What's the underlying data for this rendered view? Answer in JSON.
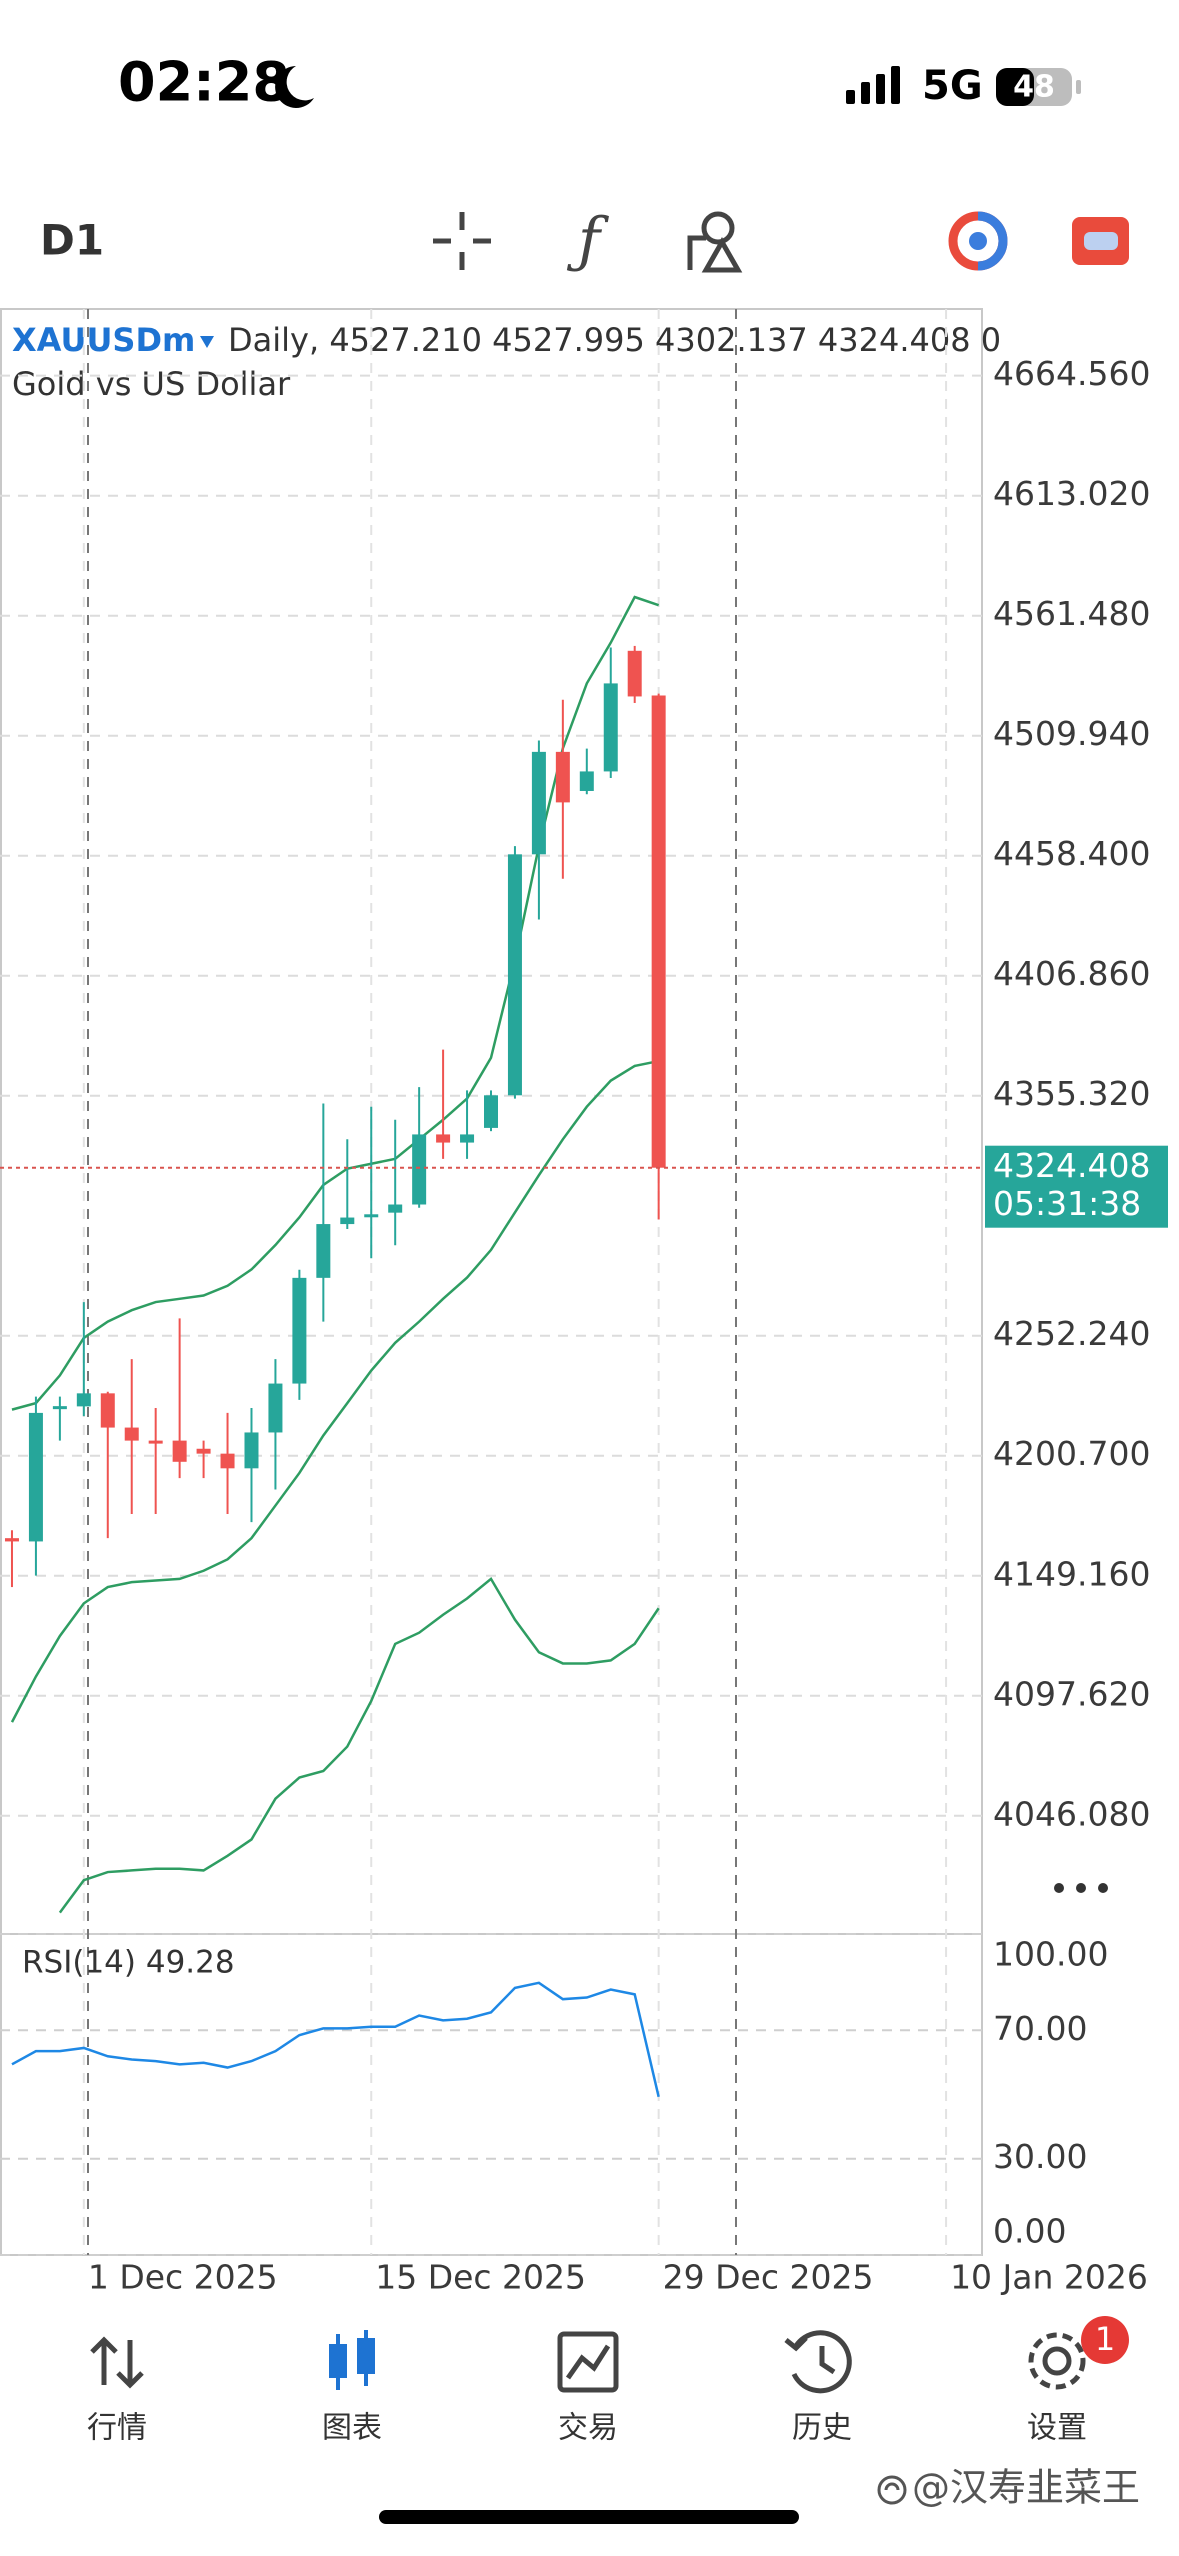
{
  "status_bar": {
    "time": "02:28",
    "network": "5G",
    "battery": "48"
  },
  "toolbar": {
    "timeframe": "D1"
  },
  "chart_data": [
    {
      "type": "candlestick",
      "title": "XAUUSDm",
      "info": "Daily, 4527.210 4527.995 4302.137 4324.408 0",
      "subtitle": "Gold vs US Dollar",
      "categories": [
        null,
        null,
        null,
        "1 Dec 2025",
        null,
        null,
        null,
        null,
        null,
        null,
        null,
        null,
        null,
        null,
        null,
        "15 Dec 2025",
        null,
        null,
        null,
        null,
        null,
        null,
        null,
        null,
        null,
        null,
        null,
        "29 Dec 2025",
        null,
        null,
        null,
        null,
        null,
        null,
        null,
        null,
        null,
        null,
        null,
        "10 Jan 2026",
        null
      ],
      "open": [
        4165.3,
        4163.9,
        4221.3,
        4221.9,
        4227.5,
        4212.8,
        4207.2,
        4207.2,
        4203.7,
        4201.6,
        4195.3,
        4210.7,
        4231.7,
        4277.1,
        4300.2,
        4303.7,
        4305.1,
        4308.6,
        4338.7,
        4335.2,
        4341.5,
        4355.5,
        4459.0,
        4503.0,
        4486.2,
        4494.6,
        4546.4,
        4527.21,
        null,
        null,
        null,
        null,
        null,
        null,
        null,
        null,
        null,
        null,
        null,
        null,
        null
      ],
      "high": [
        4168.7,
        4226.1,
        4226.1,
        4266.7,
        4228.2,
        4242.2,
        4221.2,
        4259.7,
        4207.2,
        4219.1,
        4221.2,
        4242.2,
        4280.6,
        4352.0,
        4336.6,
        4350.6,
        4345.0,
        4359.0,
        4375.1,
        4357.6,
        4357.6,
        4462.5,
        4507.9,
        4525.4,
        4504.4,
        4547.8,
        4548.5,
        4527.995,
        null,
        null,
        null,
        null,
        null,
        null,
        null,
        null,
        null,
        null,
        null,
        null,
        null
      ],
      "low": [
        4144.3,
        4149.2,
        4207.2,
        4217.7,
        4165.3,
        4175.7,
        4175.7,
        4191.1,
        4191.1,
        4175.7,
        4172.2,
        4186.2,
        4224.7,
        4258.3,
        4298.1,
        4285.5,
        4291.1,
        4307.2,
        4328.2,
        4328.2,
        4340.1,
        4354.1,
        4431.0,
        4448.5,
        4484.8,
        4491.8,
        4524.0,
        4302.137,
        null,
        null,
        null,
        null,
        null,
        null,
        null,
        null,
        null,
        null,
        null,
        null,
        null
      ],
      "close": [
        4163.9,
        4219.1,
        4222.0,
        4227.5,
        4212.8,
        4207.2,
        4206.5,
        4198.1,
        4201.6,
        4195.3,
        4210.7,
        4231.7,
        4277.1,
        4300.2,
        4303.0,
        4304.4,
        4308.6,
        4338.7,
        4335.2,
        4338.7,
        4355.5,
        4459.0,
        4503.0,
        4481.3,
        4494.6,
        4532.4,
        4526.8,
        4324.408,
        null,
        null,
        null,
        null,
        null,
        null,
        null,
        null,
        null,
        null,
        null,
        null,
        null
      ],
      "up_color": "#26a69a",
      "down_color": "#ef5350",
      "bands": {
        "color": "#2e9d62",
        "upper": [
          4220.5,
          4223.3,
          4235.2,
          4251.3,
          4258.3,
          4263.2,
          4266.7,
          4268.1,
          4269.5,
          4273.7,
          4280.7,
          4291.2,
          4303.1,
          4317.0,
          4324.0,
          4326.1,
          4328.2,
          4336.6,
          4345.0,
          4354.1,
          4371.6,
          4413.6,
          4462.5,
          4504.5,
          4532.4,
          4549.9,
          4569.5,
          4566.0,
          null,
          null,
          null,
          null,
          null,
          null,
          null,
          null,
          null,
          null,
          null,
          null,
          null
        ],
        "middle": [
          4086.3,
          4105.9,
          4123.3,
          4137.3,
          4144.3,
          4146.4,
          4147.1,
          4147.8,
          4151.3,
          4156.2,
          4165.3,
          4179.3,
          4193.3,
          4209.4,
          4223.3,
          4237.3,
          4249.2,
          4258.3,
          4268.1,
          4277.2,
          4289.1,
          4305.2,
          4321.2,
          4336.6,
          4350.6,
          4361.8,
          4368.1,
          4370.2,
          null,
          null,
          null,
          null,
          null,
          null,
          null,
          null,
          null,
          null,
          null,
          null,
          null
        ],
        "lower": [
          null,
          null,
          4004.5,
          4018.4,
          4021.9,
          4022.6,
          4023.3,
          4023.3,
          4022.6,
          4028.9,
          4035.9,
          4053.4,
          4062.5,
          4065.3,
          4075.8,
          4095.4,
          4119.9,
          4124.7,
          4132.4,
          4139.4,
          4147.8,
          4130.3,
          4116.3,
          4111.5,
          4111.5,
          4112.8,
          4119.9,
          4135.2,
          null,
          null,
          null,
          null,
          null,
          null,
          null,
          null,
          null,
          null,
          null,
          null,
          null
        ]
      },
      "last_price": 4324.408,
      "last_color": "#26a69a",
      "countdown": "05:31:38",
      "ylim": [
        3995.3,
        4693.2
      ],
      "yticks": [
        {
          "value": 4664.56,
          "label": "4664.560"
        },
        {
          "value": 4613.02,
          "label": "4613.020"
        },
        {
          "value": 4561.48,
          "label": "4561.480"
        },
        {
          "value": 4509.94,
          "label": "4509.940"
        },
        {
          "value": 4458.4,
          "label": "4458.400"
        },
        {
          "value": 4406.86,
          "label": "4406.860"
        },
        {
          "value": 4355.32,
          "label": "4355.320"
        },
        {
          "value": 4252.24,
          "label": "4252.240"
        },
        {
          "value": 4200.7,
          "label": "4200.700"
        },
        {
          "value": 4149.16,
          "label": "4149.160"
        },
        {
          "value": 4097.62,
          "label": "4097.620"
        },
        {
          "value": 4046.08,
          "label": "4046.080"
        }
      ],
      "grid": true
    },
    {
      "type": "line",
      "title": "RSI(14) 49.28",
      "color": "#1e88e5",
      "values": [
        59.4,
        63.5,
        63.5,
        64.5,
        61.9,
        60.9,
        60.4,
        59.4,
        59.9,
        58.4,
        60.4,
        63.5,
        68.5,
        70.6,
        70.6,
        71.1,
        71.1,
        74.6,
        73.1,
        73.6,
        75.6,
        83.2,
        84.8,
        79.7,
        80.2,
        82.7,
        81.2,
        49.28,
        null,
        null,
        null,
        null,
        null,
        null,
        null,
        null,
        null,
        null,
        null,
        null,
        null
      ],
      "ylim": [
        0,
        100
      ],
      "yticks": [
        {
          "value": 100,
          "label": "100.00"
        },
        {
          "value": 70,
          "label": "70.00"
        },
        {
          "value": 30,
          "label": "30.00"
        },
        {
          "value": 0,
          "label": "0.00"
        }
      ],
      "grid": true
    }
  ],
  "nav": {
    "items": [
      "行情",
      "图表",
      "交易",
      "历史",
      "设置"
    ],
    "badge": "1"
  },
  "watermark": "@汉寿韭菜王"
}
